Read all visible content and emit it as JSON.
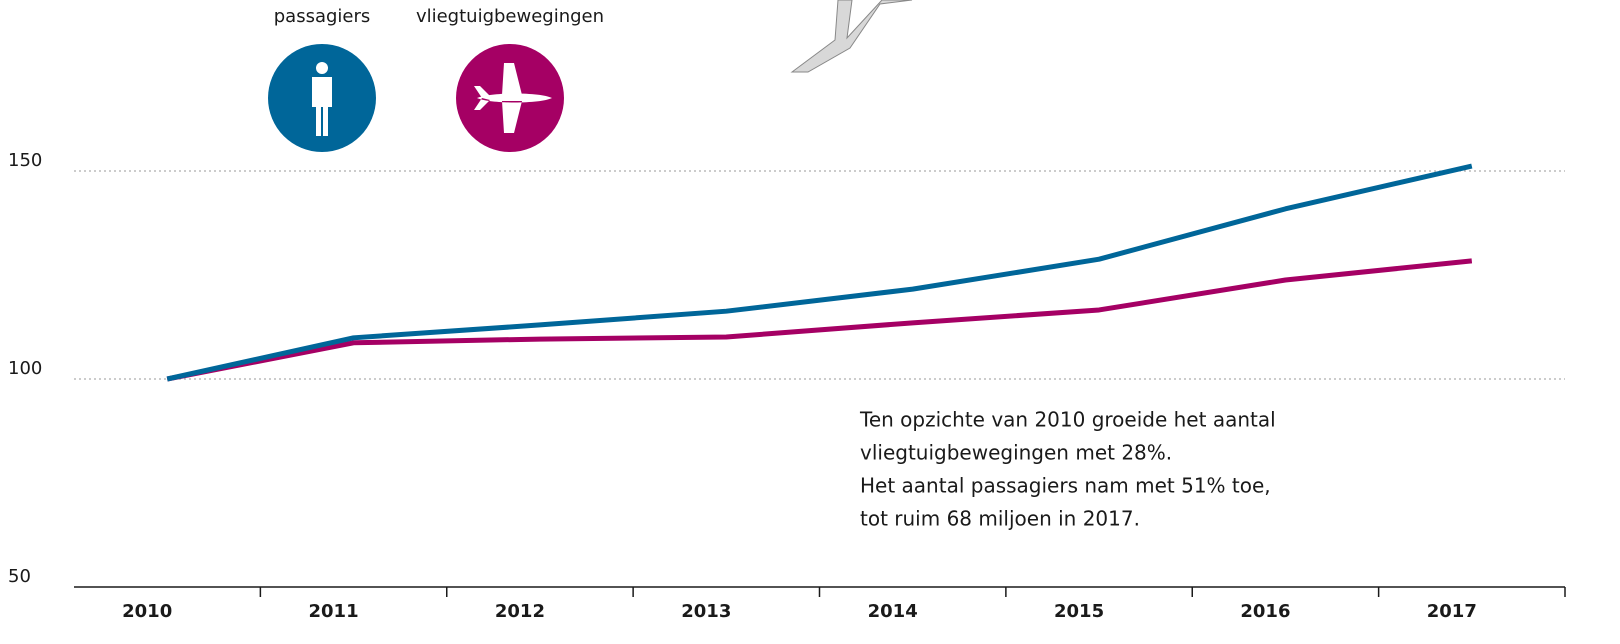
{
  "chart_data": {
    "type": "line",
    "categories": [
      "2010",
      "2011",
      "2012",
      "2013",
      "2014",
      "2015",
      "2016",
      "2017"
    ],
    "series": [
      {
        "name": "passagiers",
        "color": "#006699",
        "values": [
          100,
          109.9,
          113,
          116.3,
          121.6,
          128.8,
          140.9,
          151.2
        ]
      },
      {
        "name": "vliegtuigbewegingen",
        "color": "#a50064",
        "values": [
          100,
          108.7,
          109.6,
          110.1,
          113.5,
          116.6,
          123.8,
          128.4
        ]
      }
    ],
    "ylim": [
      50,
      150
    ],
    "yticks": [
      50,
      100,
      150
    ],
    "grid": true,
    "annotation": [
      "Ten opzichte van 2010 groeide het aantal",
      "vliegtuigbewegingen met 28%.",
      "Het aantal passagiers nam met 51% toe,",
      "tot ruim 68 miljoen in 2017."
    ]
  }
}
